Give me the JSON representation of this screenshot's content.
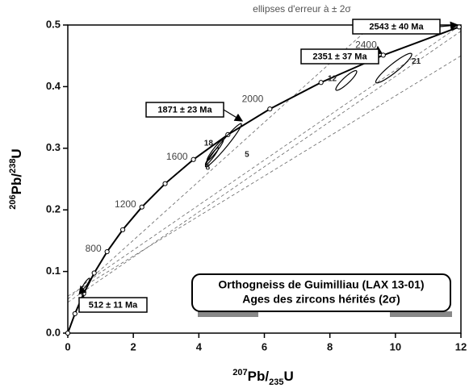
{
  "chart_data": {
    "type": "concordia",
    "annotation": "ellipses d'erreur à ± 2σ",
    "title_lines": [
      "Orthogneiss de Guimilliau (LAX 13-01)",
      "Ages des zircons hérités (2σ)"
    ],
    "xlabel_parts": [
      "207",
      "Pb/",
      "235",
      "U"
    ],
    "ylabel_parts": [
      "206",
      "Pb/",
      "238",
      "U"
    ],
    "xlim": [
      0,
      12
    ],
    "ylim": [
      0,
      0.5
    ],
    "xticks": [
      0,
      2,
      4,
      6,
      8,
      10,
      12
    ],
    "yticks": [
      {
        "value": 0,
        "label": "0.0"
      },
      0.1,
      0.2,
      0.3,
      0.4,
      0.5
    ],
    "concordia": {
      "x": [
        0,
        0.2177,
        0.4828,
        0.8056,
        1.1988,
        1.6774,
        2.2604,
        2.9702,
        3.8344,
        4.887,
        6.168,
        7.729,
        9.629,
        11.944
      ],
      "y": [
        0,
        0.03151,
        0.06402,
        0.09754,
        0.13213,
        0.16781,
        0.20459,
        0.24257,
        0.28173,
        0.32211,
        0.36376,
        0.40673,
        0.45107,
        0.4968
      ],
      "age_labels": [
        null,
        null,
        null,
        null,
        800,
        null,
        1200,
        null,
        1600,
        null,
        2000,
        null,
        2400,
        null
      ]
    },
    "reference_lines": [
      {
        "x": [
          0,
          9.3
        ],
        "y": [
          0.055,
          0.5
        ]
      },
      {
        "x": [
          0,
          12
        ],
        "y": [
          0.05,
          0.49
        ]
      },
      {
        "x": [
          0,
          12
        ],
        "y": [
          0.06,
          0.45
        ]
      },
      {
        "x": [
          0.5,
          12
        ],
        "y": [
          0.08,
          0.5
        ]
      }
    ],
    "ellipses": [
      {
        "x": 4.75,
        "y": 0.305,
        "sx": 0.55,
        "sy": 0.035,
        "rho": 0.97,
        "label": "5"
      },
      {
        "x": 4.5,
        "y": 0.297,
        "sx": 0.25,
        "sy": 0.017,
        "rho": 0.95,
        "label": "18"
      },
      {
        "x": 4.4,
        "y": 0.287,
        "sx": 0.2,
        "sy": 0.014,
        "rho": 0.95,
        "label": "8"
      },
      {
        "x": 8.5,
        "y": 0.41,
        "sx": 0.32,
        "sy": 0.016,
        "rho": 0.9,
        "label": "12"
      },
      {
        "x": 9.95,
        "y": 0.43,
        "sx": 0.55,
        "sy": 0.024,
        "rho": 0.93,
        "label": "21"
      },
      {
        "x": 0.55,
        "y": 0.08,
        "sx": 0.12,
        "sy": 0.009,
        "rho": 0.9,
        "label": null
      }
    ],
    "age_boxes": [
      "2543 ± 40 Ma",
      "2351 ± 37 Ma",
      "1871 ± 23 Ma",
      "512 ± 11 Ma"
    ]
  }
}
